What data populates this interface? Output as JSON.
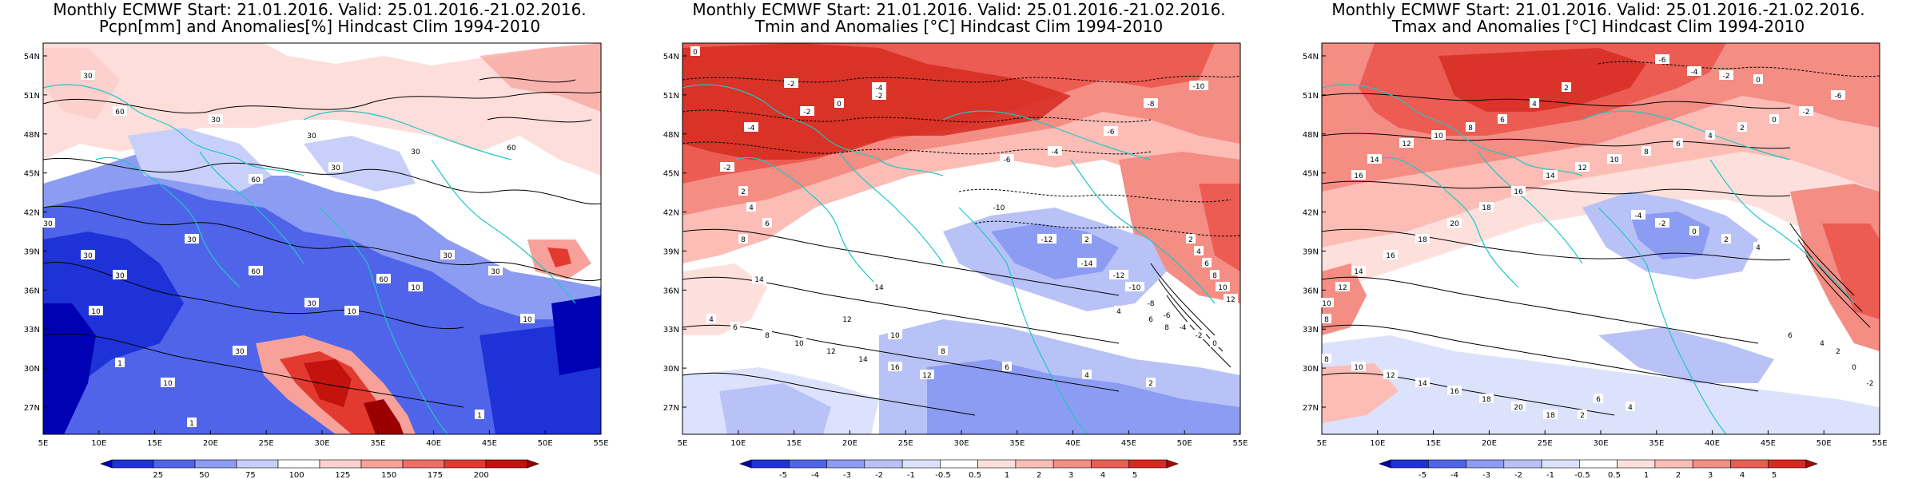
{
  "panels": [
    {
      "title_line1": "Monthly ECMWF Start: 21.01.2016. Valid: 25.01.2016.-21.02.2016.",
      "title_line2": "Pcpn[mm] and Anomalies[%] Hindcast Clim 1994-2010",
      "lat_labels": [
        "54N",
        "51N",
        "48N",
        "45N",
        "42N",
        "39N",
        "36N",
        "33N",
        "30N",
        "27N"
      ],
      "lon_labels": [
        "5E",
        "10E",
        "15E",
        "20E",
        "25E",
        "30E",
        "35E",
        "40E",
        "45E",
        "50E",
        "55E"
      ],
      "colorbar_labels": [
        "25",
        "50",
        "75",
        "100",
        "125",
        "150",
        "175",
        "200"
      ],
      "colorbar_colors": [
        "#0000b4",
        "#1e32d7",
        "#5064ea",
        "#8c9cf2",
        "#c8d0fa",
        "#ffffff",
        "#fcd0cc",
        "#f7a19a",
        "#f06e65",
        "#e33a30",
        "#c4120c",
        "#9a0000"
      ],
      "contour_labels": [
        "30",
        "60",
        "30",
        "30",
        "60",
        "30",
        "30",
        "60",
        "10",
        "30",
        "30",
        "30",
        "30",
        "60",
        "30",
        "10",
        "60",
        "10",
        "30",
        "30",
        "10",
        "1",
        "10",
        "30",
        "1",
        "1"
      ]
    },
    {
      "title_line1": "Monthly ECMWF Start: 21.01.2016. Valid: 25.01.2016.-21.02.2016.",
      "title_line2": "Tmin and Anomalies [°C] Hindcast Clim 1994-2010",
      "lat_labels": [
        "54N",
        "51N",
        "48N",
        "45N",
        "42N",
        "39N",
        "36N",
        "33N",
        "30N",
        "27N"
      ],
      "lon_labels": [
        "5E",
        "10E",
        "15E",
        "20E",
        "25E",
        "30E",
        "35E",
        "40E",
        "45E",
        "50E",
        "55E"
      ],
      "colorbar_labels": [
        "-5",
        "-4",
        "-3",
        "-2",
        "-1",
        "-0.5",
        "0.5",
        "1",
        "2",
        "3",
        "4",
        "5"
      ],
      "colorbar_colors": [
        "#0000b4",
        "#1e32d7",
        "#5064ea",
        "#8c9cf2",
        "#b8c2f7",
        "#dde2fc",
        "#ffffff",
        "#fde0dc",
        "#fbbdb6",
        "#f48d84",
        "#ec5c52",
        "#d62a20",
        "#a80a04"
      ],
      "contour_labels": [
        "0",
        "-2",
        "-4",
        "-10",
        "-8",
        "-6",
        "-2",
        "0",
        "-2",
        "-4",
        "-6",
        "-4",
        "-2",
        "2",
        "4",
        "6",
        "8",
        "-10",
        "-12",
        "-14",
        "-12",
        "-10",
        "-8",
        "-6",
        "-4",
        "-2",
        "0",
        "2",
        "4",
        "6",
        "8",
        "10",
        "12",
        "14",
        "12",
        "10",
        "8",
        "6",
        "4",
        "2",
        "14",
        "4",
        "6",
        "8",
        "10",
        "12",
        "14",
        "16",
        "12",
        "2",
        "4",
        "6",
        "8"
      ]
    },
    {
      "title_line1": "Monthly ECMWF Start: 21.01.2016. Valid: 25.01.2016.-21.02.2016.",
      "title_line2": "Tmax and Anomalies [°C] Hindcast Clim 1994-2010",
      "lat_labels": [
        "54N",
        "51N",
        "48N",
        "45N",
        "42N",
        "39N",
        "36N",
        "33N",
        "30N",
        "27N"
      ],
      "lon_labels": [
        "5E",
        "10E",
        "15E",
        "20E",
        "25E",
        "30E",
        "35E",
        "40E",
        "45E",
        "50E",
        "55E"
      ],
      "colorbar_labels": [
        "-5",
        "-4",
        "-3",
        "-2",
        "-1",
        "-0.5",
        "0.5",
        "1",
        "2",
        "3",
        "4",
        "5"
      ],
      "colorbar_colors": [
        "#0000b4",
        "#1e32d7",
        "#5064ea",
        "#8c9cf2",
        "#b8c2f7",
        "#dde2fc",
        "#ffffff",
        "#fde0dc",
        "#fbbdb6",
        "#f48d84",
        "#ec5c52",
        "#d62a20",
        "#a80a04"
      ],
      "contour_labels": [
        "-6",
        "-4",
        "-2",
        "0",
        "2",
        "4",
        "6",
        "8",
        "10",
        "12",
        "14",
        "16",
        "-4",
        "-2",
        "0",
        "2",
        "4",
        "-6",
        "-2",
        "0",
        "2",
        "4",
        "6",
        "8",
        "10",
        "12",
        "14",
        "16",
        "18",
        "20",
        "18",
        "16",
        "14",
        "12",
        "10",
        "8",
        "6",
        "4",
        "2",
        "18",
        "20",
        "18",
        "16",
        "14",
        "12",
        "10",
        "8",
        "6",
        "4",
        "2",
        "0",
        "-2"
      ]
    }
  ]
}
